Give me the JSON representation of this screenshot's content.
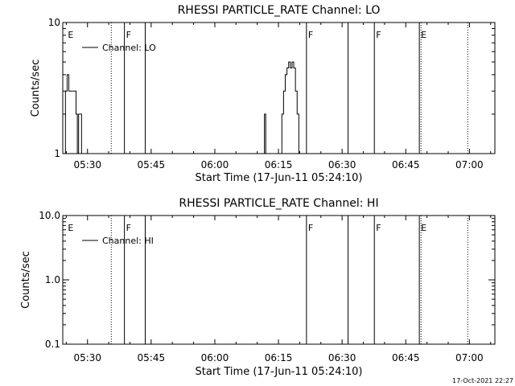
{
  "footer_timestamp": "17-Oct-2021 22:27",
  "chart_data": [
    {
      "type": "line",
      "title": "RHESSI PARTICLE_RATE Channel: LO",
      "xlabel": "Start Time (17-Jun-11 05:24:10)",
      "ylabel": "Counts/sec",
      "y_scale": "log",
      "ylim": [
        1,
        10
      ],
      "y_ticks": [
        {
          "value": 1,
          "label": "1"
        },
        {
          "value": 10,
          "label": "10"
        }
      ],
      "xlim_minutes": [
        24.17,
        126.0
      ],
      "x_ticks": [
        {
          "value": 30,
          "label": "05:30"
        },
        {
          "value": 45,
          "label": "05:45"
        },
        {
          "value": 60,
          "label": "06:00"
        },
        {
          "value": 75,
          "label": "06:15"
        },
        {
          "value": 90,
          "label": "06:30"
        },
        {
          "value": 105,
          "label": "06:45"
        },
        {
          "value": 120,
          "label": "07:00"
        }
      ],
      "legend": {
        "label": "Channel: LO",
        "placement": "top-left"
      },
      "markers": [
        {
          "minute": 25.0,
          "label": "E",
          "style": "none"
        },
        {
          "minute": 35.6,
          "label": "",
          "style": "dotted"
        },
        {
          "minute": 38.7,
          "label": "F",
          "style": "solid"
        },
        {
          "minute": 43.6,
          "label": "",
          "style": "solid"
        },
        {
          "minute": 81.6,
          "label": "F",
          "style": "solid"
        },
        {
          "minute": 91.4,
          "label": "",
          "style": "solid"
        },
        {
          "minute": 97.6,
          "label": "F",
          "style": "solid"
        },
        {
          "minute": 108.2,
          "label": "E",
          "style": "solid"
        },
        {
          "minute": 108.6,
          "label": "",
          "style": "dotted"
        },
        {
          "minute": 119.6,
          "label": "",
          "style": "dotted"
        }
      ],
      "series": [
        {
          "values": [
            [
              24.17,
              1
            ],
            [
              24.5,
              1
            ],
            [
              24.8,
              3
            ],
            [
              25.2,
              4
            ],
            [
              25.6,
              3
            ],
            [
              26.2,
              3
            ],
            [
              26.9,
              3
            ],
            [
              27.3,
              2
            ],
            [
              27.6,
              1
            ],
            [
              27.9,
              2
            ],
            [
              28.3,
              2
            ],
            [
              28.6,
              1
            ],
            [
              29.0,
              1
            ],
            [
              71.4,
              1
            ],
            [
              71.7,
              2
            ],
            [
              72.0,
              1
            ],
            [
              75.4,
              1
            ],
            [
              75.8,
              2
            ],
            [
              76.2,
              3
            ],
            [
              76.6,
              4
            ],
            [
              77.0,
              4.5
            ],
            [
              77.4,
              5
            ],
            [
              77.8,
              4.5
            ],
            [
              78.2,
              5
            ],
            [
              78.6,
              4.5
            ],
            [
              79.0,
              3
            ],
            [
              79.4,
              2
            ],
            [
              79.8,
              1
            ],
            [
              80.2,
              1
            ]
          ]
        }
      ]
    },
    {
      "type": "line",
      "title": "RHESSI PARTICLE_RATE Channel: HI",
      "xlabel": "Start Time (17-Jun-11 05:24:10)",
      "ylabel": "Counts/sec",
      "y_scale": "log",
      "ylim": [
        0.1,
        10
      ],
      "y_ticks": [
        {
          "value": 0.1,
          "label": "0.1"
        },
        {
          "value": 1,
          "label": "1.0"
        },
        {
          "value": 10,
          "label": "10.0"
        }
      ],
      "xlim_minutes": [
        24.17,
        126.0
      ],
      "x_ticks": [
        {
          "value": 30,
          "label": "05:30"
        },
        {
          "value": 45,
          "label": "05:45"
        },
        {
          "value": 60,
          "label": "06:00"
        },
        {
          "value": 75,
          "label": "06:15"
        },
        {
          "value": 90,
          "label": "06:30"
        },
        {
          "value": 105,
          "label": "06:45"
        },
        {
          "value": 120,
          "label": "07:00"
        }
      ],
      "legend": {
        "label": "Channel: HI",
        "placement": "top-left"
      },
      "markers": [
        {
          "minute": 25.0,
          "label": "E",
          "style": "none"
        },
        {
          "minute": 35.6,
          "label": "",
          "style": "dotted"
        },
        {
          "minute": 38.7,
          "label": "F",
          "style": "solid"
        },
        {
          "minute": 43.6,
          "label": "",
          "style": "solid"
        },
        {
          "minute": 81.6,
          "label": "F",
          "style": "solid"
        },
        {
          "minute": 91.4,
          "label": "",
          "style": "solid"
        },
        {
          "minute": 97.6,
          "label": "F",
          "style": "solid"
        },
        {
          "minute": 108.2,
          "label": "E",
          "style": "solid"
        },
        {
          "minute": 108.6,
          "label": "",
          "style": "dotted"
        },
        {
          "minute": 119.6,
          "label": "",
          "style": "dotted"
        }
      ],
      "series": [
        {
          "values": []
        }
      ]
    }
  ]
}
